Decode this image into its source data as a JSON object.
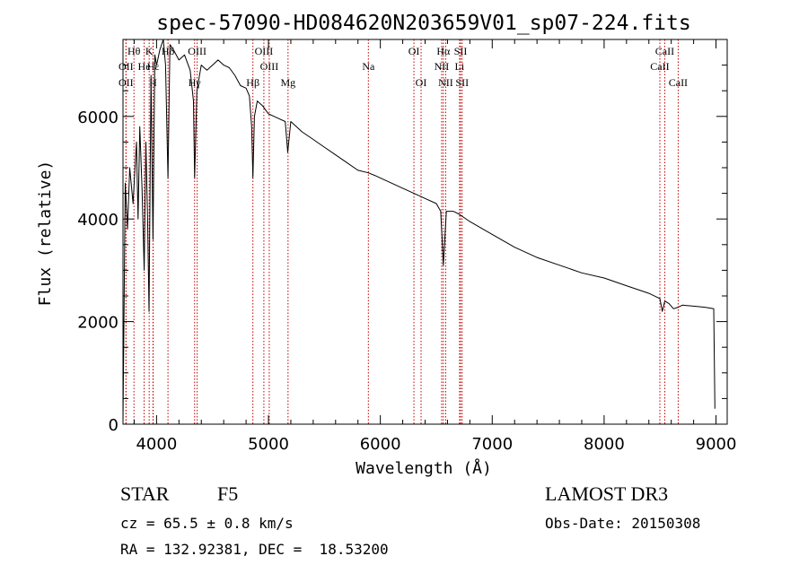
{
  "chart_data": {
    "type": "line",
    "title": "spec-57090-HD084620N203659V01_sp07-224.fits",
    "xlabel": "Wavelength (Å)",
    "ylabel": "Flux (relative)",
    "xlim": [
      3700,
      9100
    ],
    "ylim": [
      0,
      7500
    ],
    "xticks": [
      4000,
      5000,
      6000,
      7000,
      8000,
      9000
    ],
    "yticks": [
      0,
      2000,
      4000,
      6000
    ],
    "grid": false,
    "series": [
      {
        "name": "spectrum",
        "x": [
          3700,
          3720,
          3740,
          3760,
          3790,
          3820,
          3835,
          3850,
          3870,
          3889,
          3905,
          3920,
          3933,
          3950,
          3968,
          3985,
          4000,
          4030,
          4060,
          4080,
          4102,
          4120,
          4150,
          4200,
          4250,
          4300,
          4330,
          4340,
          4360,
          4400,
          4450,
          4500,
          4550,
          4600,
          4650,
          4700,
          4750,
          4800,
          4830,
          4850,
          4861,
          4875,
          4900,
          4950,
          5000,
          5050,
          5100,
          5150,
          5172,
          5200,
          5300,
          5400,
          5500,
          5600,
          5700,
          5800,
          5893,
          5950,
          6000,
          6100,
          6200,
          6300,
          6400,
          6500,
          6540,
          6563,
          6590,
          6650,
          6700,
          6800,
          7000,
          7200,
          7400,
          7600,
          7800,
          8000,
          8200,
          8400,
          8498,
          8520,
          8542,
          8580,
          8620,
          8662,
          8700,
          8800,
          8900,
          8980,
          8990
        ],
        "y": [
          50,
          4700,
          3800,
          5000,
          4300,
          5500,
          4000,
          5800,
          4600,
          3000,
          5500,
          4000,
          2200,
          6800,
          3600,
          7200,
          7000,
          7300,
          7500,
          7000,
          4800,
          7400,
          7300,
          7100,
          7200,
          6900,
          6300,
          4800,
          6500,
          7000,
          6900,
          7000,
          7100,
          7000,
          6950,
          6800,
          6600,
          6550,
          6400,
          5800,
          4800,
          6000,
          6300,
          6200,
          6050,
          6000,
          5950,
          5900,
          5300,
          5900,
          5700,
          5550,
          5400,
          5250,
          5100,
          4950,
          4900,
          4850,
          4800,
          4700,
          4600,
          4500,
          4400,
          4300,
          4150,
          3100,
          4150,
          4150,
          4100,
          3950,
          3700,
          3450,
          3250,
          3100,
          2950,
          2850,
          2700,
          2550,
          2450,
          2200,
          2400,
          2350,
          2250,
          2280,
          2320,
          2300,
          2280,
          2250,
          300
        ]
      }
    ],
    "line_markers": [
      {
        "label": "Hθ",
        "x": 3798,
        "row": 1
      },
      {
        "label": "OII",
        "x": 3727,
        "row": 2
      },
      {
        "label": "OII",
        "x": 3727,
        "row": 3
      },
      {
        "label": "K",
        "x": 3934,
        "row": 1
      },
      {
        "label": "He",
        "x": 3889,
        "row": 2
      },
      {
        "label": "Hε",
        "x": 3970,
        "row": 2
      },
      {
        "label": "H",
        "x": 3968,
        "row": 3
      },
      {
        "label": "Hδ",
        "x": 4102,
        "row": 1
      },
      {
        "label": "Hγ",
        "x": 4340,
        "row": 3
      },
      {
        "label": "OIII",
        "x": 4363,
        "row": 1
      },
      {
        "label": "OIII",
        "x": 4959,
        "row": 1
      },
      {
        "label": "OIII",
        "x": 5007,
        "row": 2
      },
      {
        "label": "Hβ",
        "x": 4861,
        "row": 3
      },
      {
        "label": "Mg",
        "x": 5175,
        "row": 3
      },
      {
        "label": "Na",
        "x": 5893,
        "row": 2
      },
      {
        "label": "OI",
        "x": 6300,
        "row": 1
      },
      {
        "label": "OI",
        "x": 6364,
        "row": 3
      },
      {
        "label": "Hα",
        "x": 6563,
        "row": 1
      },
      {
        "label": "SII",
        "x": 6717,
        "row": 1
      },
      {
        "label": "NII",
        "x": 6548,
        "row": 2
      },
      {
        "label": "Li",
        "x": 6708,
        "row": 2
      },
      {
        "label": "NII",
        "x": 6584,
        "row": 3
      },
      {
        "label": "SII",
        "x": 6731,
        "row": 3
      },
      {
        "label": "CaII",
        "x": 8542,
        "row": 1
      },
      {
        "label": "CaII",
        "x": 8498,
        "row": 2
      },
      {
        "label": "CaII",
        "x": 8662,
        "row": 3
      }
    ]
  },
  "info": {
    "object_class": "STAR",
    "subclass": "F5",
    "survey": "LAMOST DR3",
    "cz": "cz = 65.5 ± 0.8 km/s",
    "obs_date": "Obs-Date: 20150308",
    "coords": "RA = 132.92381, DEC =  18.53200"
  }
}
